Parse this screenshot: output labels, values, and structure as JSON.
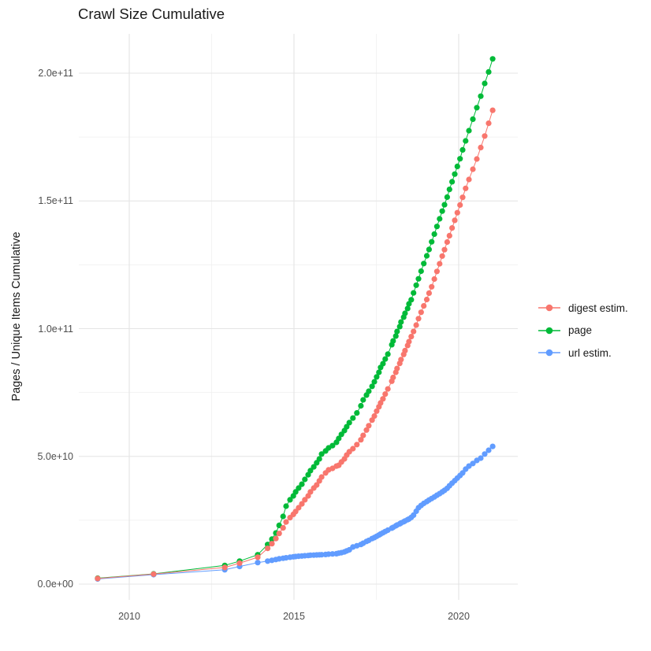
{
  "chart_data": {
    "type": "scatter",
    "title": "Crawl Size Cumulative",
    "xlabel": "",
    "ylabel": "Pages / Unique Items Cumulative",
    "grid": true,
    "legend_position": "right",
    "xlim": [
      2008.5,
      2021.8
    ],
    "ylim": [
      0,
      215000000000.0
    ],
    "x_ticks": [
      {
        "value": 2010,
        "label": "2010"
      },
      {
        "value": 2015,
        "label": "2015"
      },
      {
        "value": 2020,
        "label": "2020"
      }
    ],
    "y_ticks": [
      {
        "value": 0,
        "label": "0.0e+00"
      },
      {
        "value": 50000000000.0,
        "label": "5.0e+10"
      },
      {
        "value": 100000000000.0,
        "label": "1.0e+11"
      },
      {
        "value": 150000000000.0,
        "label": "1.5e+11"
      },
      {
        "value": 200000000000.0,
        "label": "2.0e+11"
      }
    ],
    "x": [
      2009.04,
      2010.74,
      2012.9,
      2013.35,
      2013.9,
      2014.2,
      2014.33,
      2014.45,
      2014.55,
      2014.67,
      2014.76,
      2014.88,
      2014.98,
      2015.05,
      2015.14,
      2015.24,
      2015.33,
      2015.43,
      2015.5,
      2015.6,
      2015.69,
      2015.77,
      2015.84,
      2015.96,
      2016.05,
      2016.17,
      2016.29,
      2016.36,
      2016.44,
      2016.53,
      2016.6,
      2016.68,
      2016.79,
      2016.91,
      2017.03,
      2017.1,
      2017.2,
      2017.27,
      2017.37,
      2017.44,
      2017.51,
      2017.58,
      2017.63,
      2017.7,
      2017.77,
      2017.85,
      2017.97,
      2018.01,
      2018.09,
      2018.13,
      2018.21,
      2018.25,
      2018.33,
      2018.37,
      2018.45,
      2018.49,
      2018.56,
      2018.63,
      2018.71,
      2018.78,
      2018.86,
      2018.94,
      2019.03,
      2019.1,
      2019.18,
      2019.26,
      2019.34,
      2019.42,
      2019.5,
      2019.57,
      2019.65,
      2019.72,
      2019.8,
      2019.88,
      2019.96,
      2020.04,
      2020.12,
      2020.21,
      2020.31,
      2020.43,
      2020.55,
      2020.67,
      2020.79,
      2020.91,
      2021.03
    ],
    "series": [
      {
        "name": "digest estim.",
        "color": "#F8766D",
        "y": [
          2200000000.0,
          3900000000.0,
          6500000000.0,
          8200000000.0,
          10500000000.0,
          14000000000.0,
          15800000000.0,
          17800000000.0,
          19800000000.0,
          22000000000.0,
          24300000000.0,
          26000000000.0,
          27300000000.0,
          28400000000.0,
          29900000000.0,
          31400000000.0,
          33000000000.0,
          34500000000.0,
          36100000000.0,
          37600000000.0,
          38800000000.0,
          40400000000.0,
          41900000000.0,
          43500000000.0,
          44700000000.0,
          45300000000.0,
          46200000000.0,
          46500000000.0,
          47800000000.0,
          49000000000.0,
          50500000000.0,
          51800000000.0,
          53000000000.0,
          54600000000.0,
          56500000000.0,
          58200000000.0,
          60300000000.0,
          62000000000.0,
          64200000000.0,
          65800000000.0,
          67700000000.0,
          69400000000.0,
          70900000000.0,
          72500000000.0,
          74400000000.0,
          76400000000.0,
          79400000000.0,
          80900000000.0,
          82900000000.0,
          84400000000.0,
          86400000000.0,
          87900000000.0,
          89900000000.0,
          91400000000.0,
          93400000000.0,
          94900000000.0,
          96900000000.0,
          98900000000.0,
          101400000000.0,
          103900000000.0,
          106400000000.0,
          108900000000.0,
          111400000000.0,
          113900000000.0,
          116400000000.0,
          119400000000.0,
          122400000000.0,
          125400000000.0,
          128400000000.0,
          130900000000.0,
          133900000000.0,
          136400000000.0,
          139400000000.0,
          142400000000.0,
          145400000000.0,
          148400000000.0,
          151400000000.0,
          154900000000.0,
          158400000000.0,
          162400000000.0,
          166400000000.0,
          170900000000.0,
          175400000000.0,
          180400000000.0,
          185500000000.0
        ]
      },
      {
        "name": "page",
        "color": "#00BA38",
        "y": [
          2300000000.0,
          4000000000.0,
          7300000000.0,
          9000000000.0,
          11500000000.0,
          15500000000.0,
          17600000000.0,
          20000000000.0,
          23000000000.0,
          26500000000.0,
          30500000000.0,
          33000000000.0,
          34500000000.0,
          36100000000.0,
          37600000000.0,
          39100000000.0,
          41000000000.0,
          42800000000.0,
          44400000000.0,
          45900000000.0,
          47500000000.0,
          49000000000.0,
          50900000000.0,
          52100000000.0,
          53300000000.0,
          54200000000.0,
          55500000000.0,
          57000000000.0,
          58600000000.0,
          60100000000.0,
          61600000000.0,
          63200000000.0,
          65000000000.0,
          67000000000.0,
          69800000000.0,
          72100000000.0,
          74000000000.0,
          75500000000.0,
          77400000000.0,
          79200000000.0,
          81100000000.0,
          82900000000.0,
          84800000000.0,
          86300000000.0,
          88100000000.0,
          90000000000.0,
          93700000000.0,
          95200000000.0,
          97100000000.0,
          98900000000.0,
          100800000000.0,
          102600000000.0,
          104500000000.0,
          106000000000.0,
          107900000000.0,
          109700000000.0,
          111300000000.0,
          114000000000.0,
          117000000000.0,
          119500000000.0,
          122500000000.0,
          125500000000.0,
          128500000000.0,
          131000000000.0,
          134000000000.0,
          137000000000.0,
          140000000000.0,
          143000000000.0,
          146000000000.0,
          148500000000.0,
          151500000000.0,
          154500000000.0,
          157500000000.0,
          160500000000.0,
          163500000000.0,
          166500000000.0,
          170000000000.0,
          173500000000.0,
          177500000000.0,
          182000000000.0,
          186500000000.0,
          191000000000.0,
          196000000000.0,
          200500000000.0,
          205600000000.0
        ]
      },
      {
        "name": "url estim.",
        "color": "#619CFF",
        "y": [
          2000000000.0,
          3700000000.0,
          5600000000.0,
          6900000000.0,
          8400000000.0,
          9000000000.0,
          9300000000.0,
          9600000000.0,
          9900000000.0,
          10100000000.0,
          10300000000.0,
          10500000000.0,
          10700000000.0,
          10800000000.0,
          10900000000.0,
          11000000000.0,
          11100000000.0,
          11200000000.0,
          11300000000.0,
          11350000000.0,
          11400000000.0,
          11450000000.0,
          11500000000.0,
          11600000000.0,
          11700000000.0,
          11800000000.0,
          11900000000.0,
          12100000000.0,
          12300000000.0,
          12600000000.0,
          13000000000.0,
          13400000000.0,
          14500000000.0,
          15000000000.0,
          15500000000.0,
          16000000000.0,
          16700000000.0,
          17100000000.0,
          17800000000.0,
          18200000000.0,
          18700000000.0,
          19200000000.0,
          19600000000.0,
          20100000000.0,
          20600000000.0,
          21100000000.0,
          21900000000.0,
          22200000000.0,
          22800000000.0,
          23100000000.0,
          23600000000.0,
          23900000000.0,
          24400000000.0,
          24700000000.0,
          25200000000.0,
          25500000000.0,
          26100000000.0,
          27000000000.0,
          28500000000.0,
          29900000000.0,
          30800000000.0,
          31600000000.0,
          32300000000.0,
          32900000000.0,
          33500000000.0,
          34100000000.0,
          34800000000.0,
          35400000000.0,
          36100000000.0,
          36700000000.0,
          37500000000.0,
          38500000000.0,
          39500000000.0,
          40500000000.0,
          41500000000.0,
          42500000000.0,
          43500000000.0,
          45000000000.0,
          46200000000.0,
          47200000000.0,
          48400000000.0,
          49300000000.0,
          50900000000.0,
          52400000000.0,
          53900000000.0
        ]
      }
    ],
    "colors": {
      "major_grid": "#e4e4e4",
      "minor_grid": "#efefef",
      "tick_text": "#4d4d4d"
    }
  }
}
